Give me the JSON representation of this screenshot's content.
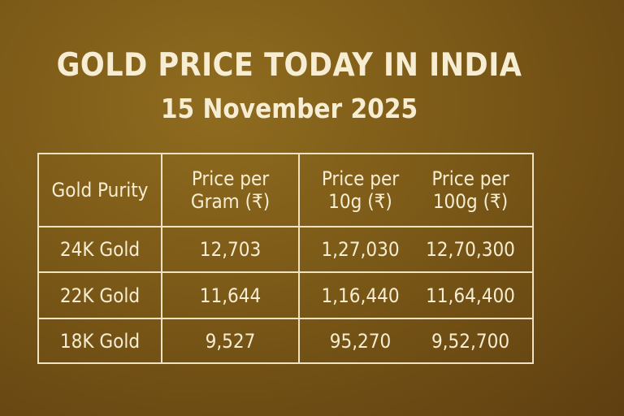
{
  "title": "GOLD PRICE TODAY IN INDIA",
  "subtitle": "15 November 2025",
  "table": {
    "headers": [
      "Gold Purity",
      "Price per\nGram (₹)",
      "Price per\n10g (₹)",
      "Price per\n100g (₹)"
    ],
    "rows": [
      [
        "24K Gold",
        "12,703",
        "1,27,030",
        "12,70,300"
      ],
      [
        "22K Gold",
        "11,644",
        "1,16,440",
        "11,64,400"
      ],
      [
        "18K Gold",
        "9,527",
        "95,270",
        "9,52,700"
      ]
    ]
  },
  "colors": {
    "text": "#f6edd2",
    "background": "#7a5817",
    "border": "#efe3c4"
  }
}
